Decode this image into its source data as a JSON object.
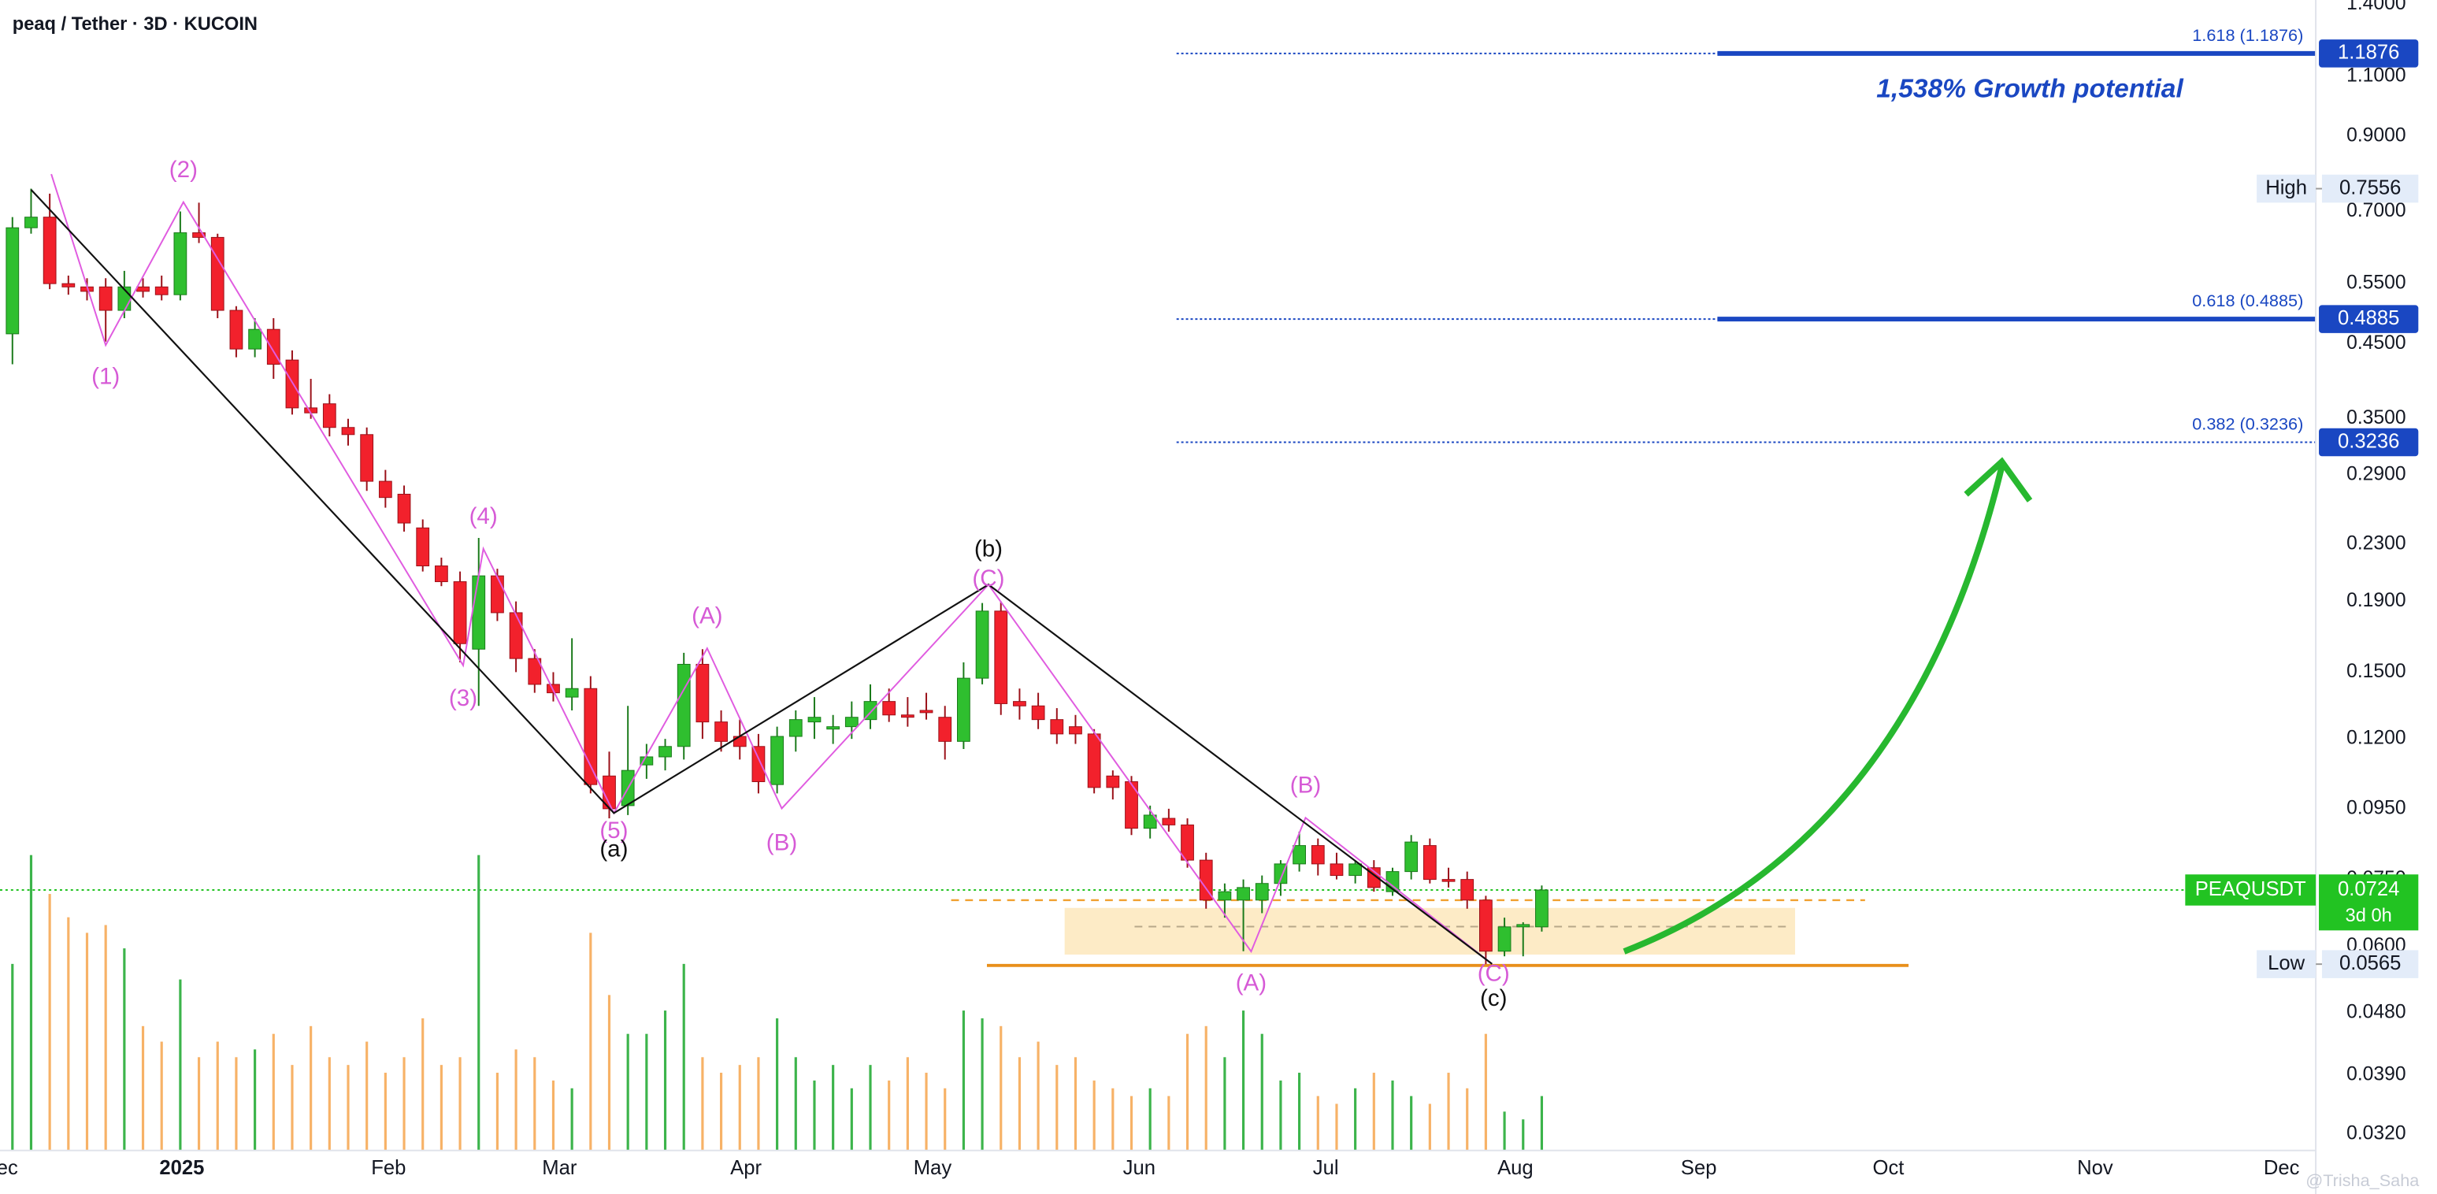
{
  "chart_data": {
    "type": "candlestick",
    "title": "peaq / Tether · 3D · KUCOIN",
    "log_scale": true,
    "grid": false,
    "ylim": [
      0.0303,
      1.42
    ],
    "yticks": [
      {
        "value": 1.4,
        "label": "1.4000"
      },
      {
        "value": 1.1,
        "label": "1.1000"
      },
      {
        "value": 0.9,
        "label": "0.9000"
      },
      {
        "value": 0.7,
        "label": "0.7000"
      },
      {
        "value": 0.55,
        "label": "0.5500"
      },
      {
        "value": 0.45,
        "label": "0.4500"
      },
      {
        "value": 0.35,
        "label": "0.3500"
      },
      {
        "value": 0.29,
        "label": "0.2900"
      },
      {
        "value": 0.23,
        "label": "0.2300"
      },
      {
        "value": 0.19,
        "label": "0.1900"
      },
      {
        "value": 0.15,
        "label": "0.1500"
      },
      {
        "value": 0.12,
        "label": "0.1200"
      },
      {
        "value": 0.095,
        "label": "0.0950"
      },
      {
        "value": 0.075,
        "label": "0.0750"
      },
      {
        "value": 0.06,
        "label": "0.0600"
      },
      {
        "value": 0.048,
        "label": "0.0480"
      },
      {
        "value": 0.039,
        "label": "0.0390"
      },
      {
        "value": 0.032,
        "label": "0.0320"
      }
    ],
    "xticks": [
      "Dec",
      "2025",
      "Feb",
      "Mar",
      "Apr",
      "May",
      "Jun",
      "Jul",
      "Aug",
      "Sep",
      "Oct",
      "Nov",
      "Dec"
    ],
    "up_color": "#2fbf2f",
    "down_color": "#f2212c",
    "volume_up_color": "#3cb44b",
    "volume_down_color": "#f7b267",
    "open": [
      0.465,
      0.663,
      0.687,
      0.55,
      0.544,
      0.544,
      0.503,
      0.544,
      0.544,
      0.53,
      0.652,
      0.642,
      0.503,
      0.442,
      0.472,
      0.426,
      0.363,
      0.368,
      0.34,
      0.332,
      0.284,
      0.272,
      0.243,
      0.214,
      0.203,
      0.162,
      0.207,
      0.183,
      0.157,
      0.144,
      0.138,
      0.142,
      0.106,
      0.096,
      0.11,
      0.113,
      0.117,
      0.154,
      0.127,
      0.121,
      0.117,
      0.103,
      0.121,
      0.127,
      0.124,
      0.125,
      0.128,
      0.136,
      0.13,
      0.132,
      0.129,
      0.119,
      0.147,
      0.184,
      0.136,
      0.134,
      0.128,
      0.125,
      0.122,
      0.106,
      0.104,
      0.089,
      0.092,
      0.09,
      0.08,
      0.07,
      0.07,
      0.07,
      0.074,
      0.079,
      0.084,
      0.079,
      0.076,
      0.078,
      0.072,
      0.077,
      0.084,
      0.075,
      0.075,
      0.07,
      0.059,
      0.064,
      0.064
    ],
    "high": [
      0.687,
      0.7556,
      0.743,
      0.565,
      0.56,
      0.56,
      0.574,
      0.56,
      0.565,
      0.7,
      0.721,
      0.65,
      0.51,
      0.49,
      0.49,
      0.44,
      0.4,
      0.38,
      0.35,
      0.34,
      0.295,
      0.28,
      0.25,
      0.22,
      0.21,
      0.235,
      0.212,
      0.19,
      0.162,
      0.15,
      0.168,
      0.148,
      0.115,
      0.134,
      0.118,
      0.12,
      0.16,
      0.162,
      0.132,
      0.128,
      0.122,
      0.125,
      0.132,
      0.138,
      0.13,
      0.136,
      0.144,
      0.142,
      0.138,
      0.14,
      0.134,
      0.155,
      0.189,
      0.19,
      0.142,
      0.14,
      0.133,
      0.13,
      0.124,
      0.108,
      0.106,
      0.096,
      0.095,
      0.092,
      0.082,
      0.074,
      0.075,
      0.076,
      0.08,
      0.088,
      0.086,
      0.082,
      0.08,
      0.08,
      0.078,
      0.087,
      0.086,
      0.078,
      0.077,
      0.071,
      0.066,
      0.065,
      0.0735
    ],
    "low": [
      0.42,
      0.65,
      0.54,
      0.53,
      0.52,
      0.453,
      0.49,
      0.525,
      0.52,
      0.52,
      0.63,
      0.49,
      0.43,
      0.43,
      0.4,
      0.355,
      0.35,
      0.33,
      0.32,
      0.275,
      0.26,
      0.24,
      0.21,
      0.2,
      0.155,
      0.134,
      0.178,
      0.15,
      0.14,
      0.136,
      0.132,
      0.1,
      0.092,
      0.093,
      0.105,
      0.108,
      0.112,
      0.12,
      0.115,
      0.112,
      0.1,
      0.1,
      0.115,
      0.12,
      0.118,
      0.12,
      0.124,
      0.127,
      0.125,
      0.128,
      0.112,
      0.116,
      0.144,
      0.13,
      0.128,
      0.124,
      0.118,
      0.118,
      0.1,
      0.098,
      0.087,
      0.086,
      0.088,
      0.078,
      0.068,
      0.066,
      0.059,
      0.067,
      0.071,
      0.077,
      0.076,
      0.075,
      0.074,
      0.072,
      0.071,
      0.075,
      0.074,
      0.073,
      0.068,
      0.0565,
      0.058,
      0.058,
      0.063
    ],
    "close": [
      0.663,
      0.687,
      0.55,
      0.544,
      0.536,
      0.503,
      0.544,
      0.536,
      0.53,
      0.652,
      0.642,
      0.503,
      0.442,
      0.472,
      0.42,
      0.363,
      0.357,
      0.34,
      0.332,
      0.284,
      0.269,
      0.247,
      0.214,
      0.203,
      0.165,
      0.207,
      0.183,
      0.157,
      0.144,
      0.14,
      0.142,
      0.103,
      0.095,
      0.108,
      0.113,
      0.117,
      0.154,
      0.127,
      0.119,
      0.117,
      0.104,
      0.121,
      0.128,
      0.129,
      0.125,
      0.129,
      0.136,
      0.13,
      0.129,
      0.131,
      0.119,
      0.147,
      0.184,
      0.135,
      0.134,
      0.128,
      0.122,
      0.122,
      0.102,
      0.102,
      0.089,
      0.093,
      0.09,
      0.08,
      0.07,
      0.072,
      0.073,
      0.074,
      0.079,
      0.084,
      0.079,
      0.076,
      0.079,
      0.073,
      0.077,
      0.085,
      0.075,
      0.0745,
      0.07,
      0.059,
      0.064,
      0.0645,
      0.0724
    ],
    "volume": [
      120,
      190,
      165,
      150,
      140,
      145,
      130,
      80,
      70,
      110,
      60,
      70,
      60,
      65,
      75,
      55,
      80,
      60,
      55,
      70,
      50,
      60,
      85,
      55,
      60,
      190,
      50,
      65,
      60,
      45,
      40,
      140,
      100,
      75,
      75,
      90,
      120,
      60,
      50,
      55,
      60,
      85,
      60,
      45,
      55,
      40,
      55,
      45,
      60,
      50,
      40,
      90,
      85,
      80,
      60,
      70,
      55,
      60,
      45,
      40,
      35,
      40,
      35,
      75,
      80,
      60,
      90,
      75,
      45,
      50,
      35,
      30,
      40,
      50,
      45,
      35,
      30,
      50,
      40,
      75,
      25,
      20,
      35
    ],
    "levels": [
      {
        "name": "1.618 (1.1876)",
        "value": 1.1876,
        "color": "#1a47c2"
      },
      {
        "name": "0.618 (0.4885)",
        "value": 0.4885,
        "color": "#1a47c2"
      },
      {
        "name": "0.382 (0.3236)",
        "value": 0.3236,
        "color": "#1a47c2"
      }
    ],
    "high_marker": {
      "name": "High",
      "value": 0.7556
    },
    "low_marker": {
      "name": "Low",
      "value": 0.0565
    },
    "last_price": {
      "name": "PEAQUSDT",
      "value": 0.0724,
      "countdown": "3d 0h",
      "color": "#22c322"
    },
    "annotation": "1,538% Growth potential",
    "wave_labels": [
      "(1)",
      "(2)",
      "(3)",
      "(4)",
      "(5)",
      "(A)",
      "(B)",
      "(C)",
      "(b)",
      "(a)",
      "(B)",
      "(A)",
      "(C)",
      "(c)"
    ],
    "watermark": "@Trisha_Saha"
  }
}
